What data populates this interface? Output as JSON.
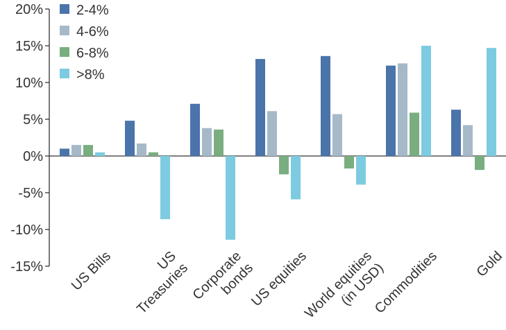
{
  "chart_data": {
    "type": "bar",
    "categories": [
      [
        "US Bills"
      ],
      [
        "US",
        "Treasuries"
      ],
      [
        "Corporate",
        "bonds"
      ],
      [
        "US equities"
      ],
      [
        "World equities",
        "(in USD)"
      ],
      [
        "Commodities"
      ],
      [
        "Gold"
      ]
    ],
    "series": [
      {
        "name": "2-4%",
        "color": "#4a74aa",
        "values": [
          1.0,
          4.8,
          7.1,
          13.2,
          13.6,
          12.3,
          6.3
        ]
      },
      {
        "name": "4-6%",
        "color": "#a6b9c9",
        "values": [
          1.5,
          1.7,
          3.8,
          6.1,
          5.7,
          12.6,
          4.2
        ]
      },
      {
        "name": "6-8%",
        "color": "#7aae80",
        "values": [
          1.5,
          0.5,
          3.6,
          -2.5,
          -1.7,
          5.9,
          -1.9
        ]
      },
      {
        "name": ">8%",
        "color": "#7dcbe0",
        "values": [
          0.5,
          -8.6,
          -11.4,
          -5.9,
          -3.9,
          15.0,
          14.7
        ]
      }
    ],
    "ylim": [
      -15,
      20
    ],
    "yticks": [
      "20%",
      "15%",
      "10%",
      "5%",
      "0%",
      "-5%",
      "-10%",
      "-15%"
    ],
    "ytick_values": [
      20,
      15,
      10,
      5,
      0,
      -5,
      -10,
      -15
    ],
    "legend_placement": "top-left",
    "grid": false
  }
}
